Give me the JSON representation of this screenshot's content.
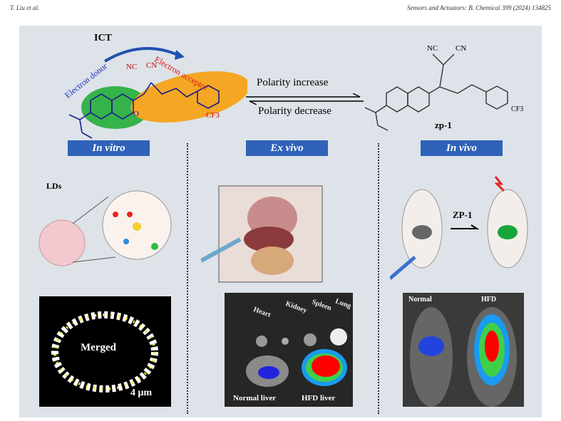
{
  "header": {
    "authors": "T. Liu et al.",
    "journal": "Sensors and Actuators: B. Chemical 399 (2024) 134825"
  },
  "top": {
    "ict": "ICT",
    "donor": "Electron donor",
    "acceptor": "Electron acceptor",
    "nc1": "NC",
    "cn1": "CN",
    "o1": "O",
    "cf3": "CF3",
    "increase": "Polarity increase",
    "decrease": "Polarity decrease",
    "compound": "zp-1",
    "nc2": "NC",
    "cn2": "CN",
    "cf3b": "CF3"
  },
  "sections": {
    "vitro": "In vitro",
    "exvivo": "Ex vivo",
    "invivo": "In vivo"
  },
  "vitro": {
    "lds": "LDs",
    "merged": "Merged",
    "scale": "4 μm"
  },
  "exvivo": {
    "organs": [
      "Heart",
      "Kidney",
      "Spleen",
      "Lung"
    ],
    "normal": "Normal liver",
    "hfd": "HFD liver"
  },
  "invivo": {
    "probe": "ZP-1",
    "normal": "Normal",
    "hfd": "HFD"
  },
  "colors": {
    "label_bg": "#2f62b8",
    "donor": "#1f2fbf",
    "acceptor": "#e01818"
  }
}
